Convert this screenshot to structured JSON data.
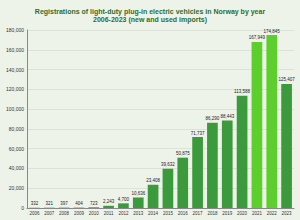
{
  "chart_data": {
    "type": "bar",
    "title": "Registrations of light-duty plug-in electric vehicles in Norway by year",
    "subtitle": "2006-2023 (new and used imports)",
    "categories": [
      "2006",
      "2007",
      "2008",
      "2009",
      "2010",
      "2011",
      "2012",
      "2013",
      "2014",
      "2015",
      "2016",
      "2017",
      "2018",
      "2019",
      "2020",
      "2021",
      "2022",
      "2023"
    ],
    "values": [
      332,
      321,
      397,
      404,
      723,
      2243,
      4700,
      10636,
      23408,
      39632,
      50875,
      71737,
      86290,
      88443,
      113588,
      167949,
      174845,
      125407
    ],
    "value_labels": [
      "332",
      "321",
      "397",
      "404",
      "723",
      "2,243",
      "4,700",
      "10,636",
      "23,408",
      "39,632",
      "50,875",
      "71,737",
      "86,290",
      "88,443",
      "113,588",
      "167,949",
      "174,845",
      "125,407"
    ],
    "colors": [
      "#3b9a3b",
      "#3b9a3b",
      "#3b9a3b",
      "#3b9a3b",
      "#3b9a3b",
      "#3b9a3b",
      "#3b9a3b",
      "#3b9a3b",
      "#3b9a3b",
      "#3b9a3b",
      "#3b9a3b",
      "#3b9a3b",
      "#3b9a3b",
      "#3b9a3b",
      "#3b9a3b",
      "#5ccf2c",
      "#5ccf2c",
      "#3b9a3b"
    ],
    "ylim": [
      0,
      180000
    ],
    "yticks": [
      0,
      {
        "value": 20000,
        "label": "20,000"
      },
      {
        "value": 40000,
        "label": "40,000"
      },
      {
        "value": 60000,
        "label": "60,000"
      },
      {
        "value": 80000,
        "label": "80,000"
      },
      {
        "value": 100000,
        "label": "100,000"
      },
      {
        "value": 120000,
        "label": "120,000"
      },
      {
        "value": 140000,
        "label": "140,000"
      },
      {
        "value": 160000,
        "label": "160,000"
      },
      {
        "value": 180000,
        "label": "180,000"
      }
    ],
    "grid": true,
    "data_labels": true
  }
}
